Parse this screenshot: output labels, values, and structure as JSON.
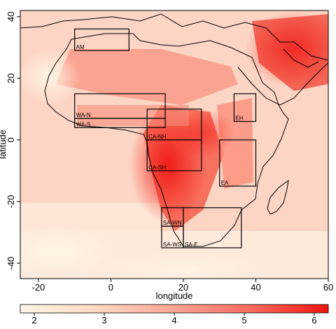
{
  "map": {
    "xlabel": "longitude",
    "ylabel": "latitude",
    "xlim": [
      -25,
      60
    ],
    "ylim": [
      -45,
      42
    ],
    "x_ticks": [
      -20,
      0,
      20,
      40,
      60
    ],
    "y_ticks": [
      40,
      20,
      0,
      -20,
      -40
    ],
    "regions": [
      {
        "id": "AM",
        "label": "AM",
        "lon": [
          -10,
          5
        ],
        "lat": [
          29,
          36
        ]
      },
      {
        "id": "WA-N",
        "label": "WA-N",
        "lon": [
          -10,
          15
        ],
        "lat": [
          7,
          15
        ]
      },
      {
        "id": "WA-S",
        "label": "WA-S",
        "lon": [
          -10,
          15
        ],
        "lat": [
          4,
          7
        ]
      },
      {
        "id": "CA-NH",
        "label": "CA-NH",
        "lon": [
          10,
          25
        ],
        "lat": [
          0,
          10
        ]
      },
      {
        "id": "CA-SH",
        "label": "CA-SH",
        "lon": [
          10,
          25
        ],
        "lat": [
          -10,
          0
        ]
      },
      {
        "id": "EH",
        "label": "EH",
        "lon": [
          34,
          40
        ],
        "lat": [
          6,
          15
        ]
      },
      {
        "id": "EA",
        "label": "EA",
        "lon": [
          30,
          40
        ],
        "lat": [
          -15,
          0
        ]
      },
      {
        "id": "SA-WN",
        "label": "SA-WN",
        "lon": [
          14,
          20
        ],
        "lat": [
          -28,
          -22
        ]
      },
      {
        "id": "SA-WS",
        "label": "SA-WS",
        "lon": [
          14,
          20
        ],
        "lat": [
          -35,
          -28
        ]
      },
      {
        "id": "SA-E",
        "label": "SA-E",
        "lon": [
          20,
          36
        ],
        "lat": [
          -35,
          -22
        ]
      }
    ]
  },
  "colorbar": {
    "min": 1.8,
    "max": 6.2,
    "ticks": [
      2,
      3,
      4,
      5,
      6
    ],
    "colors": [
      "#fff6e6",
      "#ffd8c2",
      "#ffa593",
      "#fa6a5d",
      "#f0140f"
    ]
  }
}
